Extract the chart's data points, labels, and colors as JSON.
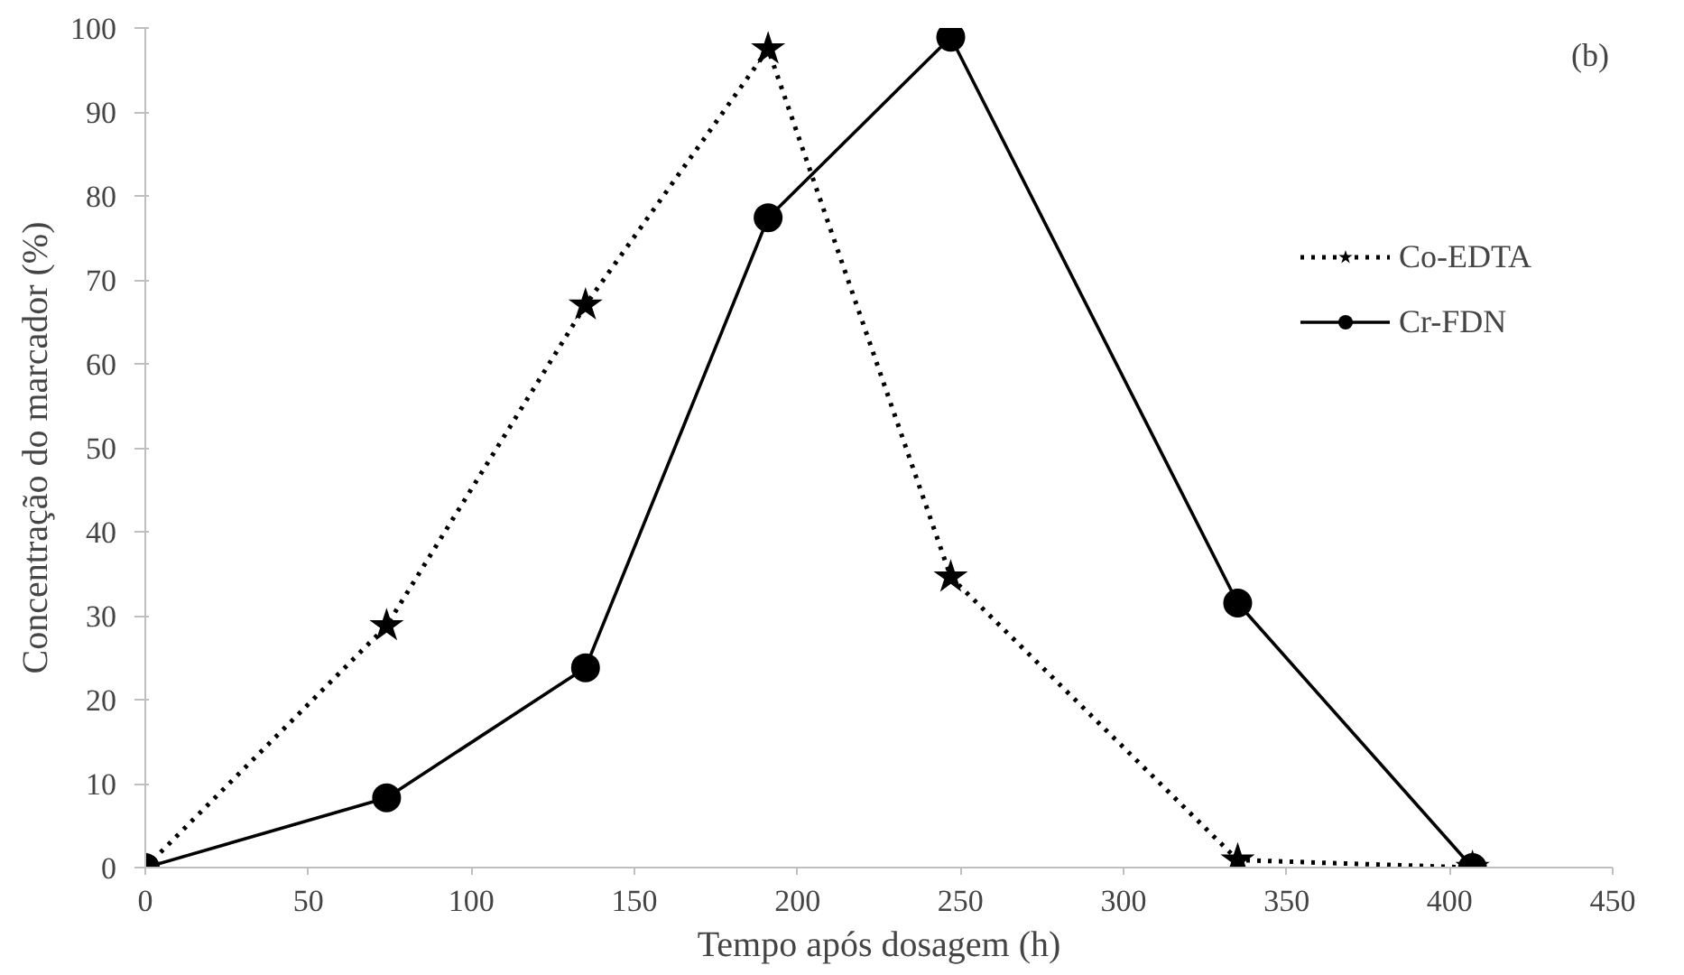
{
  "chart_data": {
    "type": "line",
    "xlabel": "Tempo após dosagem (h)",
    "ylabel": "Concentração do marcador (%)",
    "annotations": [
      "(b)"
    ],
    "xlim": [
      0,
      450
    ],
    "xticks": [
      0,
      50,
      100,
      150,
      200,
      250,
      300,
      350,
      400,
      450
    ],
    "ylim": [
      0,
      100
    ],
    "yticks": [
      0,
      10,
      20,
      30,
      40,
      50,
      60,
      70,
      80,
      90,
      100
    ],
    "grid": false,
    "legend": "right",
    "series": [
      {
        "name": "Co-EDTA",
        "color": "#000000",
        "marker": "star",
        "line_style": "dotted",
        "x": [
          0,
          74,
          135,
          191,
          247,
          335,
          407
        ],
        "values": [
          0,
          28.8,
          67.0,
          97.5,
          34.6,
          0.9,
          0
        ]
      },
      {
        "name": "Cr-FDN",
        "color": "#000000",
        "marker": "circle",
        "line_style": "solid",
        "x": [
          0,
          74,
          135,
          191,
          247,
          335,
          407
        ],
        "values": [
          0,
          8.3,
          23.8,
          77.4,
          98.9,
          31.5,
          0
        ]
      }
    ]
  }
}
